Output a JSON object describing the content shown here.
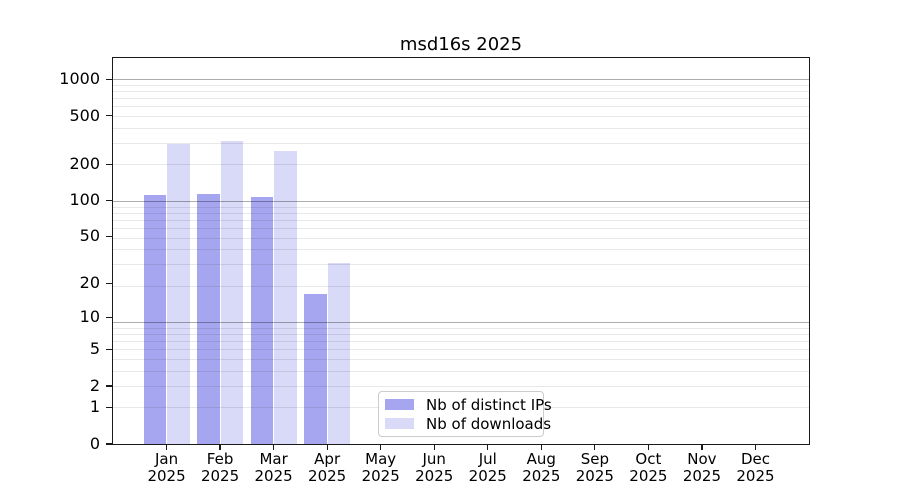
{
  "title": "msd16s 2025",
  "chart_data": {
    "type": "bar",
    "title": "msd16s 2025",
    "categories": [
      "Jan",
      "Feb",
      "Mar",
      "Apr",
      "May",
      "Jun",
      "Jul",
      "Aug",
      "Sep",
      "Oct",
      "Nov",
      "Dec"
    ],
    "x_tick_year": "2025",
    "series": [
      {
        "name": "Nb of distinct IPs",
        "color": "#a6a6f0",
        "values": [
          110,
          114,
          107,
          16,
          null,
          null,
          null,
          null,
          null,
          null,
          null,
          null
        ]
      },
      {
        "name": "Nb of downloads",
        "color": "#d9d9f8",
        "values": [
          296,
          310,
          256,
          30,
          null,
          null,
          null,
          null,
          null,
          null,
          null,
          null
        ]
      }
    ],
    "y_ticks": [
      0,
      1,
      2,
      5,
      10,
      20,
      50,
      100,
      200,
      500,
      1000
    ],
    "y_scale": "log10(1+value)",
    "ylim": [
      0,
      1500
    ],
    "xlabel": "",
    "ylabel": "",
    "grid": {
      "major": true,
      "minor": true,
      "drawn_on_top_of_bars": true
    },
    "legend": {
      "position": "lower-center",
      "entries": [
        "Nb of distinct IPs",
        "Nb of downloads"
      ]
    }
  },
  "colors": {
    "series_distinct_ips": "#a6a6f0",
    "series_downloads": "#d9d9f8",
    "grid_major": "rgba(0,0,0,0.32)",
    "grid_minor": "rgba(0,0,0,0.09)",
    "axis_frame": "#1a1a1a",
    "background": "#ffffff",
    "legend_border": "#cccccc"
  }
}
